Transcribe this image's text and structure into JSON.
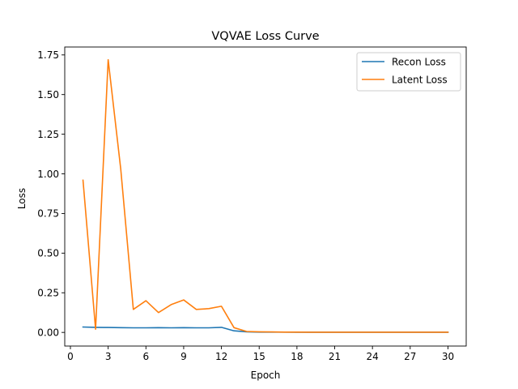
{
  "chart_data": {
    "type": "line",
    "title": "VQVAE Loss Curve",
    "xlabel": "Epoch",
    "ylabel": "Loss",
    "xlim": [
      -0.45,
      31.45
    ],
    "ylim": [
      -0.086,
      1.8
    ],
    "xticks": [
      0,
      3,
      6,
      9,
      12,
      15,
      18,
      21,
      24,
      27,
      30
    ],
    "xtick_labels": [
      "0",
      "3",
      "6",
      "9",
      "12",
      "15",
      "18",
      "21",
      "24",
      "27",
      "30"
    ],
    "yticks": [
      0.0,
      0.25,
      0.5,
      0.75,
      1.0,
      1.25,
      1.5,
      1.75
    ],
    "ytick_labels": [
      "0.00",
      "0.25",
      "0.50",
      "0.75",
      "1.00",
      "1.25",
      "1.50",
      "1.75"
    ],
    "grid": false,
    "legend_position": "upper right",
    "x": [
      1,
      2,
      3,
      4,
      5,
      6,
      7,
      8,
      9,
      10,
      11,
      12,
      13,
      14,
      15,
      16,
      17,
      18,
      19,
      20,
      21,
      22,
      23,
      24,
      25,
      26,
      27,
      28,
      29,
      30
    ],
    "series": [
      {
        "name": "Recon Loss",
        "color": "#1f77b4",
        "values": [
          0.034,
          0.032,
          0.031,
          0.03,
          0.029,
          0.029,
          0.03,
          0.029,
          0.03,
          0.029,
          0.029,
          0.032,
          0.01,
          0.004,
          0.002,
          0.002,
          0.002,
          0.001,
          0.001,
          0.001,
          0.001,
          0.001,
          0.001,
          0.001,
          0.001,
          0.001,
          0.001,
          0.001,
          0.001,
          0.001
        ]
      },
      {
        "name": "Latent Loss",
        "color": "#ff7f0e",
        "values": [
          0.96,
          0.02,
          1.72,
          1.03,
          0.145,
          0.2,
          0.125,
          0.175,
          0.205,
          0.145,
          0.15,
          0.165,
          0.03,
          0.006,
          0.004,
          0.003,
          0.002,
          0.002,
          0.001,
          0.001,
          0.001,
          0.001,
          0.001,
          0.001,
          0.001,
          0.001,
          0.001,
          0.001,
          0.001,
          0.001
        ]
      }
    ]
  }
}
